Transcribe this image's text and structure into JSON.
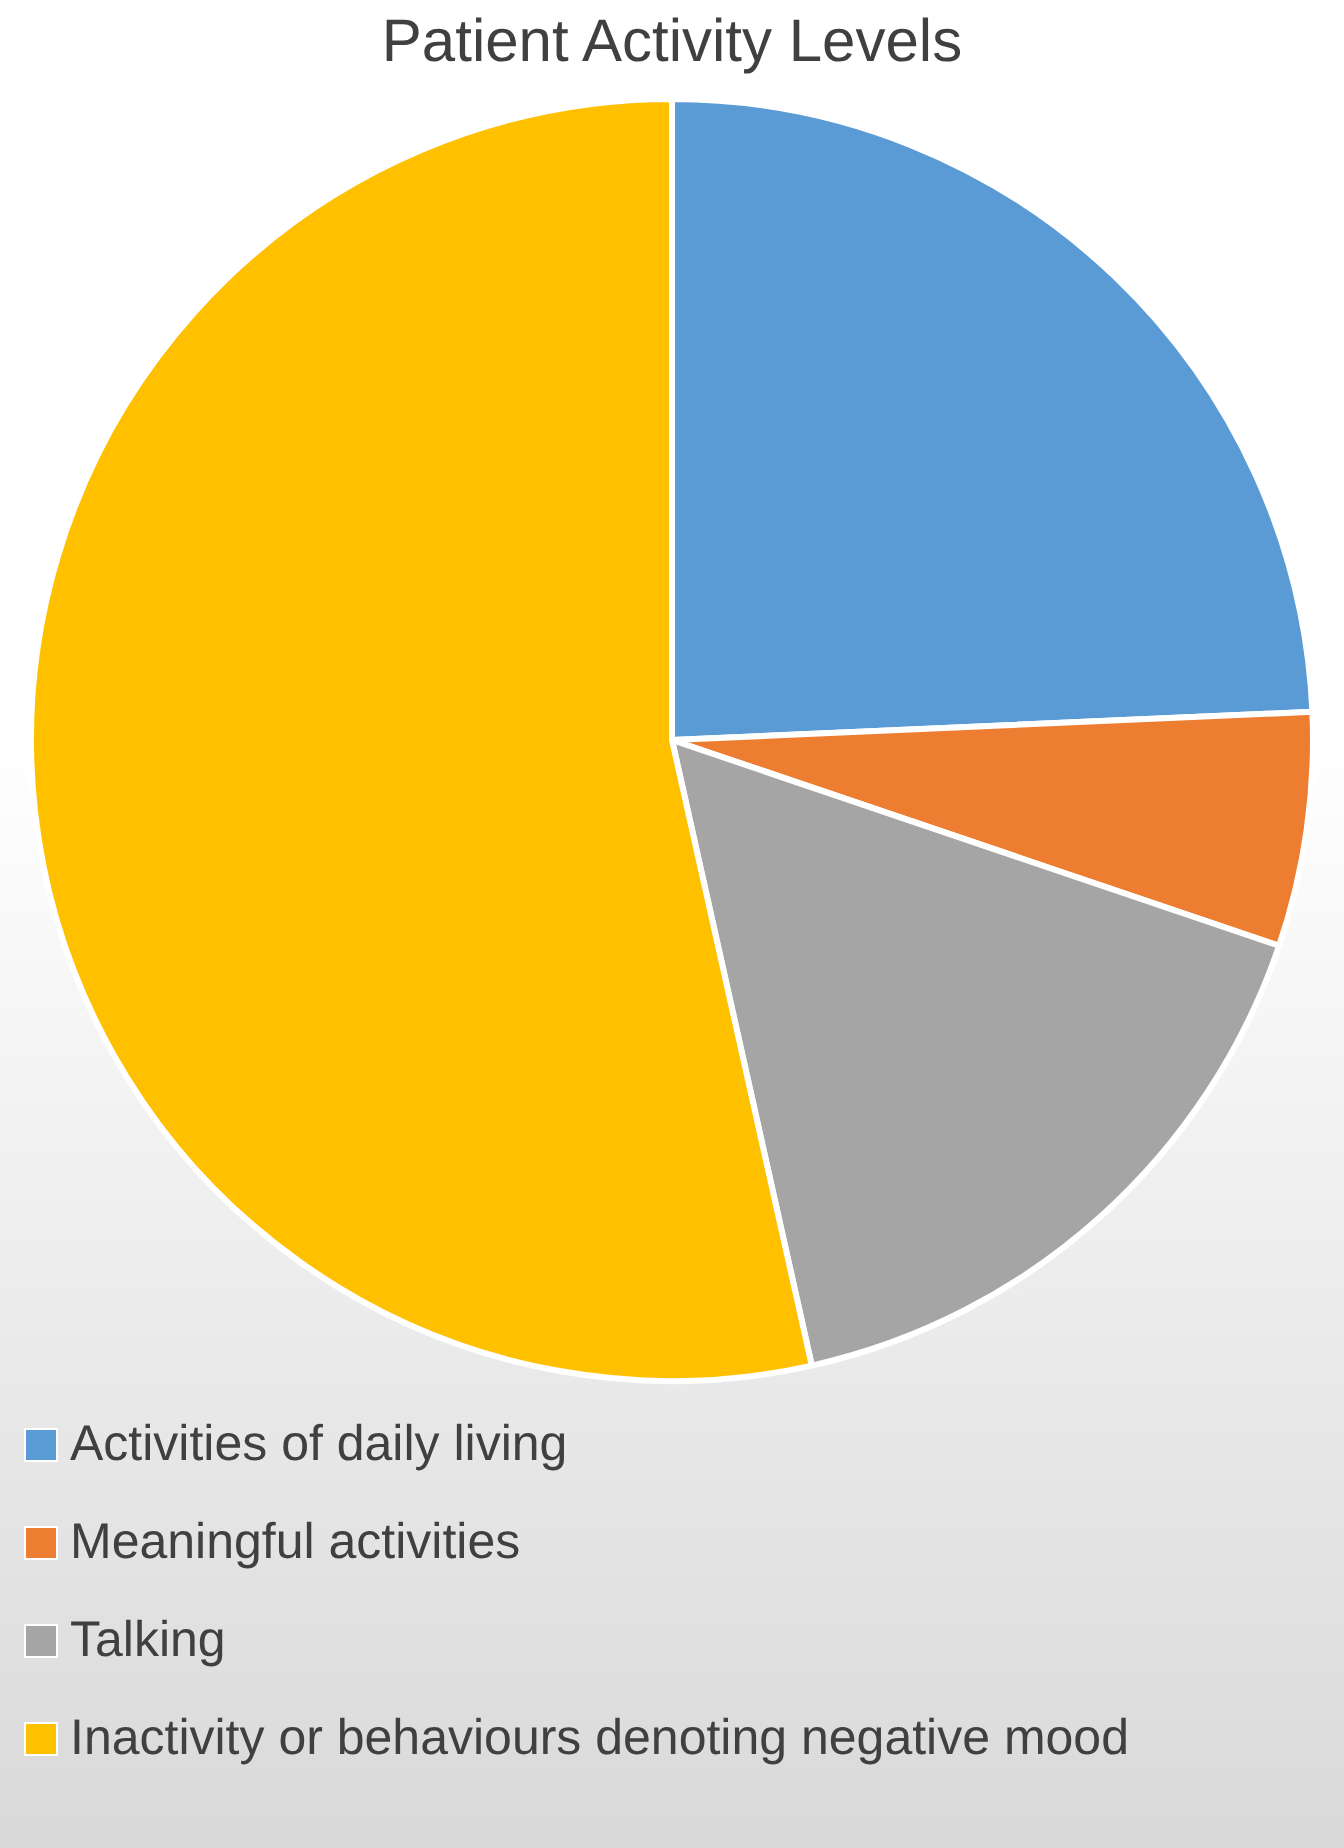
{
  "chart_data": {
    "type": "pie",
    "title": "Patient Activity Levels",
    "categories": [
      "Activities of daily living",
      "Meaningful activities",
      "Talking",
      "Inactivity or behaviours denoting negative mood"
    ],
    "values": [
      24.3,
      5.9,
      16.3,
      53.5
    ],
    "colors": [
      "#5b9bd5",
      "#ed7d31",
      "#a5a5a5",
      "#ffc000"
    ],
    "legend": "bottom"
  }
}
